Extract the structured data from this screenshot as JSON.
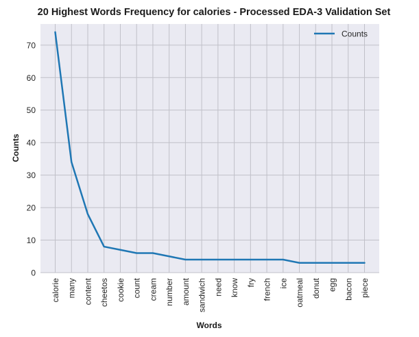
{
  "chart_data": {
    "type": "line",
    "title": "20 Highest Words Frequency for calories - Processed EDA-3 Validation Set",
    "xlabel": "Words",
    "ylabel": "Counts",
    "categories": [
      "calorie",
      "many",
      "content",
      "cheetos",
      "cookie",
      "count",
      "cream",
      "number",
      "amount",
      "sandwich",
      "need",
      "know",
      "fry",
      "french",
      "ice",
      "oatmeal",
      "donut",
      "egg",
      "bacon",
      "piece"
    ],
    "series": [
      {
        "name": "Counts",
        "color": "#1f77b4",
        "values": [
          74,
          34,
          18,
          8,
          7,
          6,
          6,
          5,
          4,
          4,
          4,
          4,
          4,
          4,
          4,
          3,
          3,
          3,
          3,
          3
        ]
      }
    ],
    "ylim": [
      0,
      76.5
    ],
    "yticks": [
      0,
      10,
      20,
      30,
      40,
      50,
      60,
      70
    ],
    "grid": true,
    "legend_position": "top-right",
    "background": "#eaeaf2",
    "grid_color": "#c0c0c8"
  }
}
